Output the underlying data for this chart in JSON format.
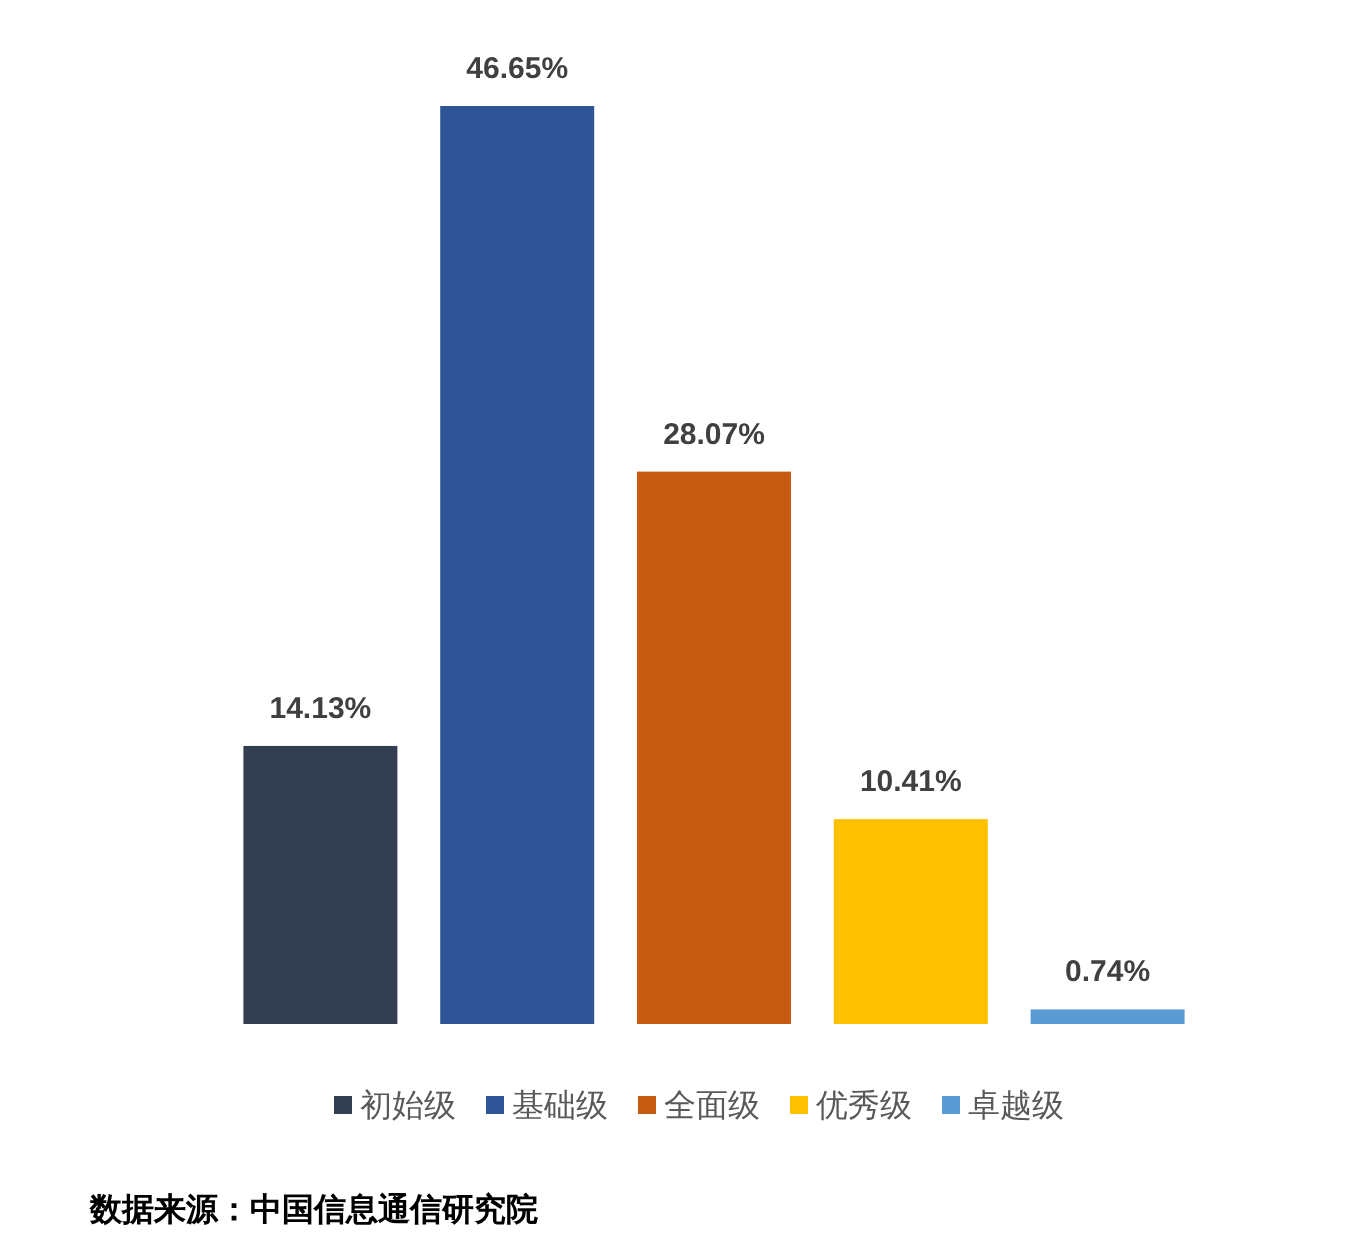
{
  "chart_data": {
    "type": "bar",
    "categories": [
      null,
      null,
      null,
      null,
      null
    ],
    "series": [
      {
        "name": "初始级",
        "color": "#333f50",
        "values": [
          14.13,
          null,
          null,
          null,
          null
        ],
        "value_labels": [
          "14.13%",
          null,
          null,
          null,
          null
        ]
      },
      {
        "name": "基础级",
        "color": "#2f5597",
        "values": [
          null,
          46.65,
          null,
          null,
          null
        ],
        "value_labels": [
          null,
          "46.65%",
          null,
          null,
          null
        ]
      },
      {
        "name": "全面级",
        "color": "#c55a11",
        "values": [
          null,
          null,
          28.07,
          null,
          null
        ],
        "value_labels": [
          null,
          null,
          "28.07%",
          null,
          null
        ]
      },
      {
        "name": "优秀级",
        "color": "#ffc000",
        "values": [
          null,
          null,
          null,
          10.41,
          null
        ],
        "value_labels": [
          null,
          null,
          null,
          "10.41%",
          null
        ]
      },
      {
        "name": "卓越级",
        "color": "#5b9bd5",
        "values": [
          null,
          null,
          null,
          null,
          0.74
        ],
        "value_labels": [
          null,
          null,
          null,
          null,
          "0.74%"
        ]
      }
    ],
    "stacked": true,
    "legend": "bottom",
    "annotations": [
      "数据来源：中国信息通信研究院"
    ]
  }
}
